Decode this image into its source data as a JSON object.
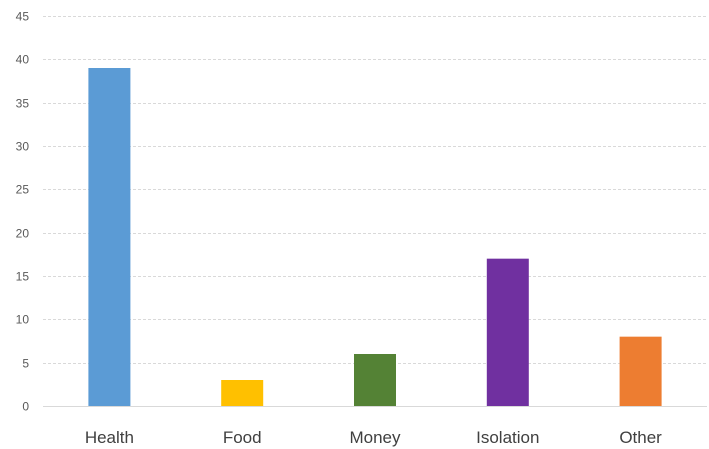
{
  "chart_data": {
    "type": "bar",
    "title": "",
    "xlabel": "",
    "ylabel": "",
    "categories": [
      "Health",
      "Food",
      "Money",
      "Isolation",
      "Other"
    ],
    "values": [
      39,
      3,
      6,
      17,
      8
    ],
    "colors": [
      "#5b9bd5",
      "#ffc000",
      "#548235",
      "#7030a0",
      "#ed7d31"
    ],
    "ylim": [
      0,
      45
    ],
    "yticks": [
      0,
      5,
      10,
      15,
      20,
      25,
      30,
      35,
      40,
      45
    ],
    "grid": true,
    "legend": "none"
  }
}
